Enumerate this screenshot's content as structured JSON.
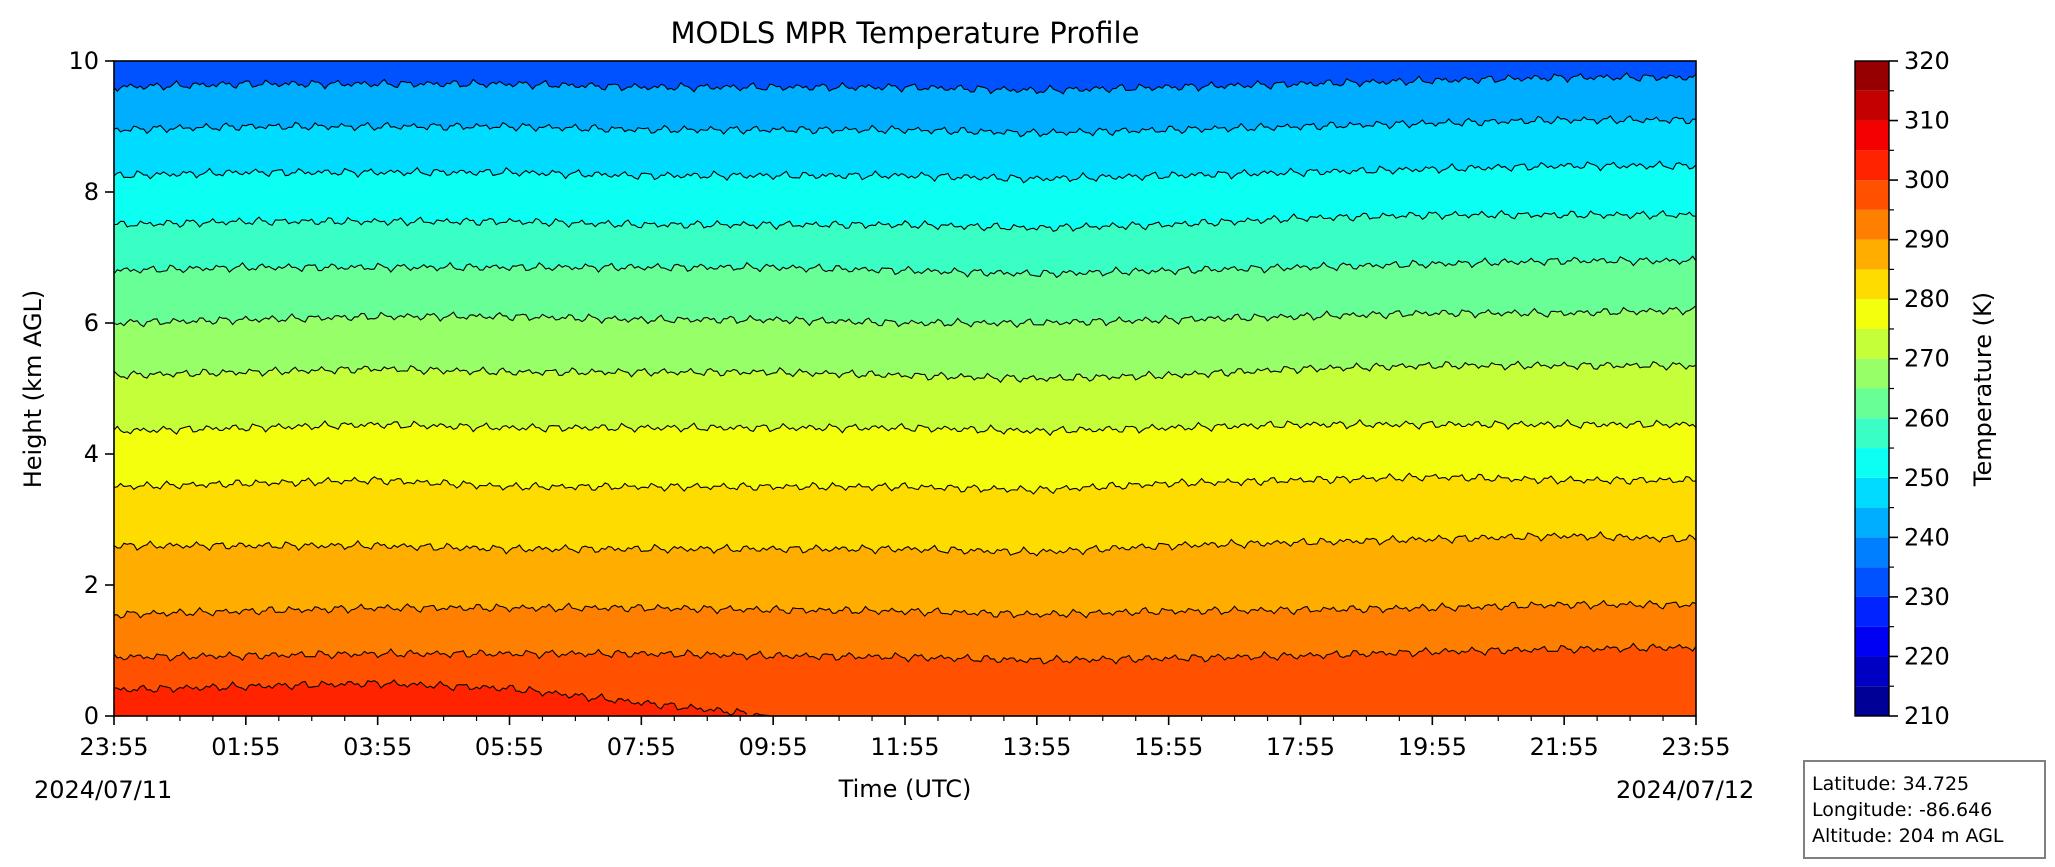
{
  "chart_data": {
    "type": "heatmap",
    "title": "MODLS MPR Temperature Profile",
    "xlabel": "Time (UTC)",
    "ylabel": "Height (km AGL)",
    "xticks": [
      "23:55",
      "01:55",
      "03:55",
      "05:55",
      "07:55",
      "09:55",
      "11:55",
      "13:55",
      "15:55",
      "17:55",
      "19:55",
      "21:55",
      "23:55"
    ],
    "start_date": "2024/07/11",
    "end_date": "2024/07/12",
    "ylim": [
      0,
      10
    ],
    "yticks": [
      0,
      2,
      4,
      6,
      8,
      10
    ],
    "colorbar": {
      "label": "Temperature (K)",
      "range": [
        210,
        320
      ],
      "ticks": [
        210,
        220,
        230,
        240,
        250,
        260,
        270,
        280,
        290,
        300,
        310,
        320
      ],
      "levels": [
        210,
        215,
        220,
        225,
        230,
        235,
        240,
        245,
        250,
        255,
        260,
        265,
        270,
        275,
        280,
        285,
        290,
        295,
        300,
        305,
        310,
        315,
        320
      ],
      "colormap": "jet"
    },
    "contour_interval_K": 5,
    "surface_temperature_K": [
      305,
      304,
      303.5,
      303,
      303,
      302.5,
      302.5,
      304,
      305.5,
      306.5,
      307,
      307.5,
      307.5
    ],
    "contour_heights_km": [
      {
        "level": 300,
        "heights": [
          0.4,
          0.45,
          0.5,
          0.42,
          0.2,
          0.0,
          0.0,
          0.0,
          0.0,
          0.0,
          0.0,
          0.0,
          0.0
        ]
      },
      {
        "level": 295,
        "heights": [
          0.9,
          0.92,
          0.95,
          0.95,
          0.95,
          0.92,
          0.9,
          0.85,
          0.88,
          0.92,
          0.98,
          1.02,
          1.05
        ]
      },
      {
        "level": 290,
        "heights": [
          1.55,
          1.6,
          1.65,
          1.65,
          1.65,
          1.62,
          1.6,
          1.55,
          1.6,
          1.62,
          1.65,
          1.7,
          1.7
        ]
      },
      {
        "level": 285,
        "heights": [
          2.6,
          2.6,
          2.6,
          2.55,
          2.55,
          2.55,
          2.55,
          2.5,
          2.6,
          2.65,
          2.7,
          2.75,
          2.7
        ]
      },
      {
        "level": 280,
        "heights": [
          3.5,
          3.55,
          3.6,
          3.5,
          3.5,
          3.5,
          3.5,
          3.45,
          3.55,
          3.6,
          3.65,
          3.6,
          3.6
        ]
      },
      {
        "level": 275,
        "heights": [
          4.35,
          4.4,
          4.45,
          4.4,
          4.4,
          4.4,
          4.4,
          4.35,
          4.4,
          4.45,
          4.45,
          4.45,
          4.45
        ]
      },
      {
        "level": 270,
        "heights": [
          5.2,
          5.25,
          5.3,
          5.25,
          5.25,
          5.25,
          5.2,
          5.15,
          5.2,
          5.3,
          5.35,
          5.35,
          5.35
        ]
      },
      {
        "level": 265,
        "heights": [
          6.0,
          6.05,
          6.1,
          6.1,
          6.05,
          6.05,
          6.0,
          6.0,
          6.05,
          6.1,
          6.15,
          6.15,
          6.2
        ]
      },
      {
        "level": 260,
        "heights": [
          6.8,
          6.85,
          6.85,
          6.85,
          6.85,
          6.85,
          6.8,
          6.75,
          6.8,
          6.85,
          6.9,
          6.95,
          6.95
        ]
      },
      {
        "level": 255,
        "heights": [
          7.5,
          7.55,
          7.55,
          7.55,
          7.5,
          7.5,
          7.5,
          7.45,
          7.5,
          7.6,
          7.65,
          7.65,
          7.65
        ]
      },
      {
        "level": 250,
        "heights": [
          8.25,
          8.3,
          8.3,
          8.3,
          8.25,
          8.25,
          8.25,
          8.2,
          8.25,
          8.3,
          8.35,
          8.4,
          8.4
        ]
      },
      {
        "level": 245,
        "heights": [
          8.95,
          9.0,
          9.0,
          9.0,
          8.95,
          8.95,
          8.95,
          8.9,
          8.95,
          9.0,
          9.05,
          9.1,
          9.1
        ]
      },
      {
        "level": 240,
        "heights": [
          9.6,
          9.65,
          9.65,
          9.65,
          9.6,
          9.6,
          9.6,
          9.55,
          9.6,
          9.65,
          9.7,
          9.75,
          9.75
        ]
      }
    ],
    "info_box": {
      "latitude": "Latitude: 34.725",
      "longitude": "Longitude: -86.646",
      "altitude": "Altitude: 204 m AGL"
    }
  }
}
